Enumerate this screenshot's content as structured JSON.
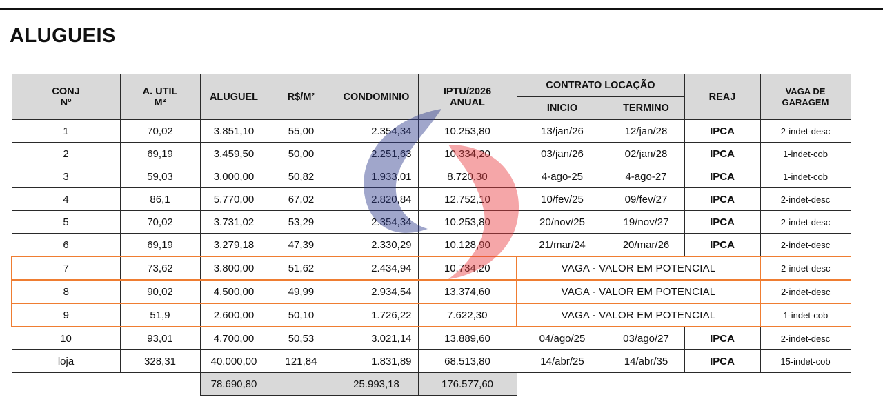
{
  "title": "ALUGUEIS",
  "headers": {
    "conj": [
      "CONJ",
      "Nº"
    ],
    "area": [
      "A. UTIL",
      "M²"
    ],
    "aluguel": "ALUGUEL",
    "rsm2": "R$/M²",
    "condominio": "CONDOMINIO",
    "iptu": [
      "IPTU/2026",
      "ANUAL"
    ],
    "contrato": "CONTRATO LOCAÇÃO",
    "inicio": "INICIO",
    "termino": "TERMINO",
    "reaj": "REAJ",
    "vaga": [
      "VAGA DE",
      "GARAGEM"
    ]
  },
  "rows": [
    {
      "conj": "1",
      "area": "70,02",
      "aluguel": "3.851,10",
      "rsm2": "55,00",
      "condominio": "2.354,34",
      "iptu": "10.253,80",
      "inicio": "13/jan/26",
      "termino": "12/jan/28",
      "reaj": "IPCA",
      "vaga": "2-indet-desc"
    },
    {
      "conj": "2",
      "area": "69,19",
      "aluguel": "3.459,50",
      "rsm2": "50,00",
      "condominio": "2.251,63",
      "iptu": "10.334,20",
      "inicio": "03/jan/26",
      "termino": "02/jan/28",
      "reaj": "IPCA",
      "vaga": "1-indet-cob"
    },
    {
      "conj": "3",
      "area": "59,03",
      "aluguel": "3.000,00",
      "rsm2": "50,82",
      "condominio": "1.933,01",
      "iptu": "8.720,30",
      "inicio": "4-ago-25",
      "termino": "4-ago-27",
      "reaj": "IPCA",
      "vaga": "1-indet-cob"
    },
    {
      "conj": "4",
      "area": "86,1",
      "aluguel": "5.770,00",
      "rsm2": "67,02",
      "condominio": "2.820,84",
      "iptu": "12.752,10",
      "inicio": "10/fev/25",
      "termino": "09/fev/27",
      "reaj": "IPCA",
      "vaga": "2-indet-desc"
    },
    {
      "conj": "5",
      "area": "70,02",
      "aluguel": "3.731,02",
      "rsm2": "53,29",
      "condominio": "2.354,34",
      "iptu": "10.253,80",
      "inicio": "20/nov/25",
      "termino": "19/nov/27",
      "reaj": "IPCA",
      "vaga": "2-indet-desc"
    },
    {
      "conj": "6",
      "area": "69,19",
      "aluguel": "3.279,18",
      "rsm2": "47,39",
      "condominio": "2.330,29",
      "iptu": "10.128,90",
      "inicio": "21/mar/24",
      "termino": "20/mar/26",
      "reaj": "IPCA",
      "vaga": "2-indet-desc"
    },
    {
      "conj": "7",
      "area": "73,62",
      "aluguel": "3.800,00",
      "rsm2": "51,62",
      "condominio": "2.434,94",
      "iptu": "10.734,20",
      "contrato": "VAGA - VALOR EM POTENCIAL",
      "vaga": "2-indet-desc"
    },
    {
      "conj": "8",
      "area": "90,02",
      "aluguel": "4.500,00",
      "rsm2": "49,99",
      "condominio": "2.934,54",
      "iptu": "13.374,60",
      "contrato": "VAGA - VALOR EM POTENCIAL",
      "vaga": "2-indet-desc"
    },
    {
      "conj": "9",
      "area": "51,9",
      "aluguel": "2.600,00",
      "rsm2": "50,10",
      "condominio": "1.726,22",
      "iptu": "7.622,30",
      "contrato": "VAGA - VALOR EM POTENCIAL",
      "vaga": "1-indet-cob"
    },
    {
      "conj": "10",
      "area": "93,01",
      "aluguel": "4.700,00",
      "rsm2": "50,53",
      "condominio": "3.021,14",
      "iptu": "13.889,60",
      "inicio": "04/ago/25",
      "termino": "03/ago/27",
      "reaj": "IPCA",
      "vaga": "2-indet-desc"
    },
    {
      "conj": "loja",
      "area": "328,31",
      "aluguel": "40.000,00",
      "rsm2": "121,84",
      "condominio": "1.831,89",
      "iptu": "68.513,80",
      "inicio": "14/abr/25",
      "termino": "14/abr/35",
      "reaj": "IPCA",
      "vaga": "15-indet-cob"
    }
  ],
  "totals": {
    "aluguel": "78.690,80",
    "condominio": "25.993,18",
    "iptu": "176.577,60"
  },
  "colors": {
    "header_bg": "#d9d9d9",
    "highlight_border": "#ef7d32",
    "watermark_blue": "#2d3a8c",
    "watermark_red": "#e8393f"
  }
}
